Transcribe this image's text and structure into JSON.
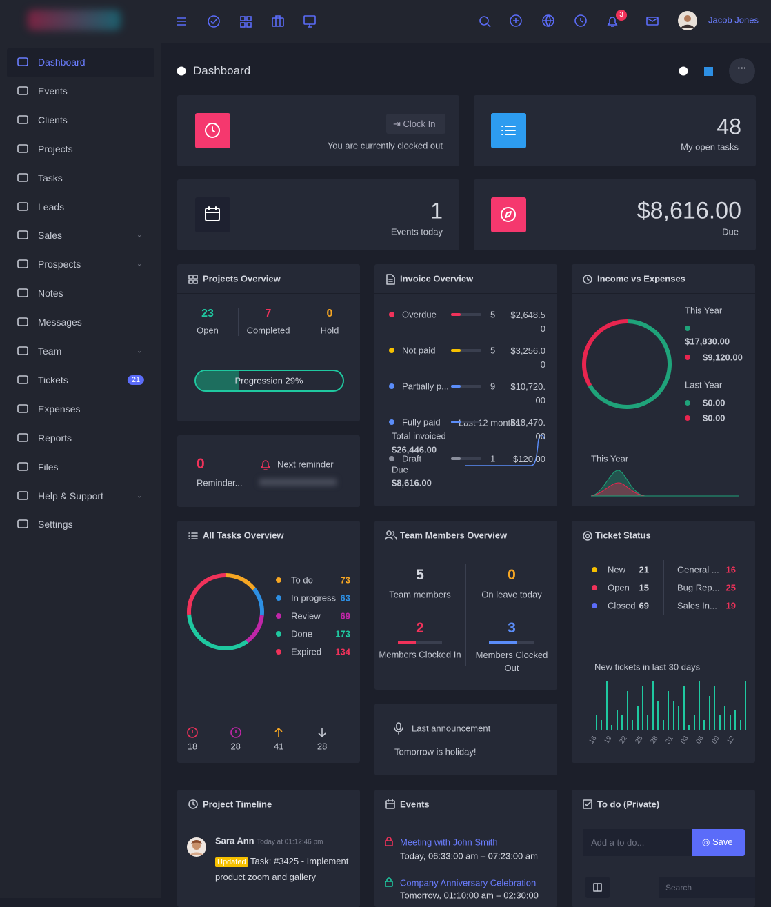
{
  "topbar": {
    "user": "Jacob Jones",
    "notifications": 3
  },
  "sidebar": {
    "items": [
      "Dashboard",
      "Events",
      "Clients",
      "Projects",
      "Tasks",
      "Leads",
      "Sales",
      "Prospects",
      "Notes",
      "Messages",
      "Team",
      "Tickets",
      "Expenses",
      "Reports",
      "Files",
      "Help & Support",
      "Settings"
    ],
    "tickets_badge": 21
  },
  "page_title": "Dashboard",
  "clock": {
    "button": "Clock In",
    "status": "You are currently clocked out"
  },
  "open_tasks": {
    "count": 48,
    "label": "My open tasks"
  },
  "events_today": {
    "count": 1,
    "label": "Events today"
  },
  "due": {
    "amount": "$8,616.00",
    "label": "Due"
  },
  "projects_overview": {
    "title": "Projects Overview",
    "stats": [
      {
        "value": 23,
        "label": "Open"
      },
      {
        "value": 7,
        "label": "Completed"
      },
      {
        "value": 0,
        "label": "Hold"
      }
    ],
    "progress": {
      "value": 29,
      "label": "Progression 29%"
    }
  },
  "reminders": {
    "count": 0,
    "label": "Reminder...",
    "next": "Next reminder"
  },
  "invoice_overview": {
    "title": "Invoice Overview",
    "rows": [
      {
        "name": "Overdue",
        "count": 5,
        "amount": "$2,648.50"
      },
      {
        "name": "Not paid",
        "count": 5,
        "amount": "$3,256.00"
      },
      {
        "name": "Partially p...",
        "count": 9,
        "amount": "$10,720.00"
      },
      {
        "name": "Fully paid",
        "amount": "$18,470.00"
      }
    ],
    "draft": {
      "name": "Draft",
      "count": 1,
      "amount": "$120.00"
    },
    "total_label": "Total invoiced",
    "total": "$26,446.00",
    "due_label": "Due",
    "due": "$8,616.00",
    "period": "Last 12 months"
  },
  "income_expenses": {
    "title": "Income vs Expenses",
    "this_year_label": "This Year",
    "this_year": {
      "income": {
        "value": 17830,
        "label": "$17,830.00"
      },
      "expenses": {
        "value": 9120,
        "label": "$9,120.00"
      }
    },
    "last_year_label": "Last Year",
    "last_year": {
      "income": "$0.00",
      "expenses": "$0.00"
    },
    "chart_label": "This Year"
  },
  "tasks_overview": {
    "title": "All Tasks Overview",
    "statuses": [
      {
        "name": "To do",
        "value": 73,
        "color": "#f6a623"
      },
      {
        "name": "In progress",
        "value": 63,
        "color": "#2d8fe3"
      },
      {
        "name": "Review",
        "value": 69,
        "color": "#c026a8"
      },
      {
        "name": "Done",
        "value": 173,
        "color": "#1fc8a0"
      },
      {
        "name": "Expired",
        "value": 134,
        "color": "#f0325a"
      }
    ],
    "footer": [
      18,
      28,
      41,
      28
    ]
  },
  "team": {
    "title": "Team Members Overview",
    "members": 5,
    "members_label": "Team members",
    "on_leave": 0,
    "on_leave_label": "On leave today",
    "clocked_in": 2,
    "clocked_in_label": "Members Clocked In",
    "clocked_out": 3,
    "clocked_out_label": "Members Clocked Out"
  },
  "announcement": {
    "title": "Last announcement",
    "text": "Tomorrow is holiday!"
  },
  "ticket_status": {
    "title": "Ticket Status",
    "statuses": [
      {
        "name": "New",
        "value": 21,
        "color": "#f6c000"
      },
      {
        "name": "Open",
        "value": 15,
        "color": "#f0325a"
      },
      {
        "name": "Closed",
        "value": 69,
        "color": "#5b6cf9"
      }
    ],
    "types": [
      {
        "name": "General ...",
        "value": 16
      },
      {
        "name": "Bug Rep...",
        "value": 25
      },
      {
        "name": "Sales In...",
        "value": 19
      }
    ],
    "chart": {
      "title": "New tickets in last 30 days",
      "labels": [
        "16",
        "19",
        "22",
        "25",
        "28",
        "31",
        "03",
        "06",
        "09",
        "12"
      ],
      "values": [
        3,
        2,
        10,
        1,
        4,
        3,
        8,
        2,
        5,
        9,
        3,
        10,
        6,
        2,
        8,
        6,
        5,
        9,
        1,
        3,
        10,
        2,
        7,
        9,
        3,
        5,
        3,
        4,
        2,
        10
      ]
    }
  },
  "timeline": {
    "title": "Project Timeline",
    "entries": [
      {
        "name": "Sara Ann",
        "time": "Today at 01:12:46 pm",
        "badge": "Updated",
        "text": "Task: #3425 - Implement product zoom and gallery"
      }
    ]
  },
  "events": {
    "title": "Events",
    "items": [
      {
        "title": "Meeting with John Smith",
        "time": "Today, 06:33:00 am – 07:23:00 am"
      },
      {
        "title": "Company Anniversary Celebration",
        "time": "Tomorrow, 01:10:00 am – 02:30:00"
      }
    ]
  },
  "todo": {
    "title": "To do (Private)",
    "placeholder": "Add a to do...",
    "button": "Save",
    "search": "Search"
  }
}
